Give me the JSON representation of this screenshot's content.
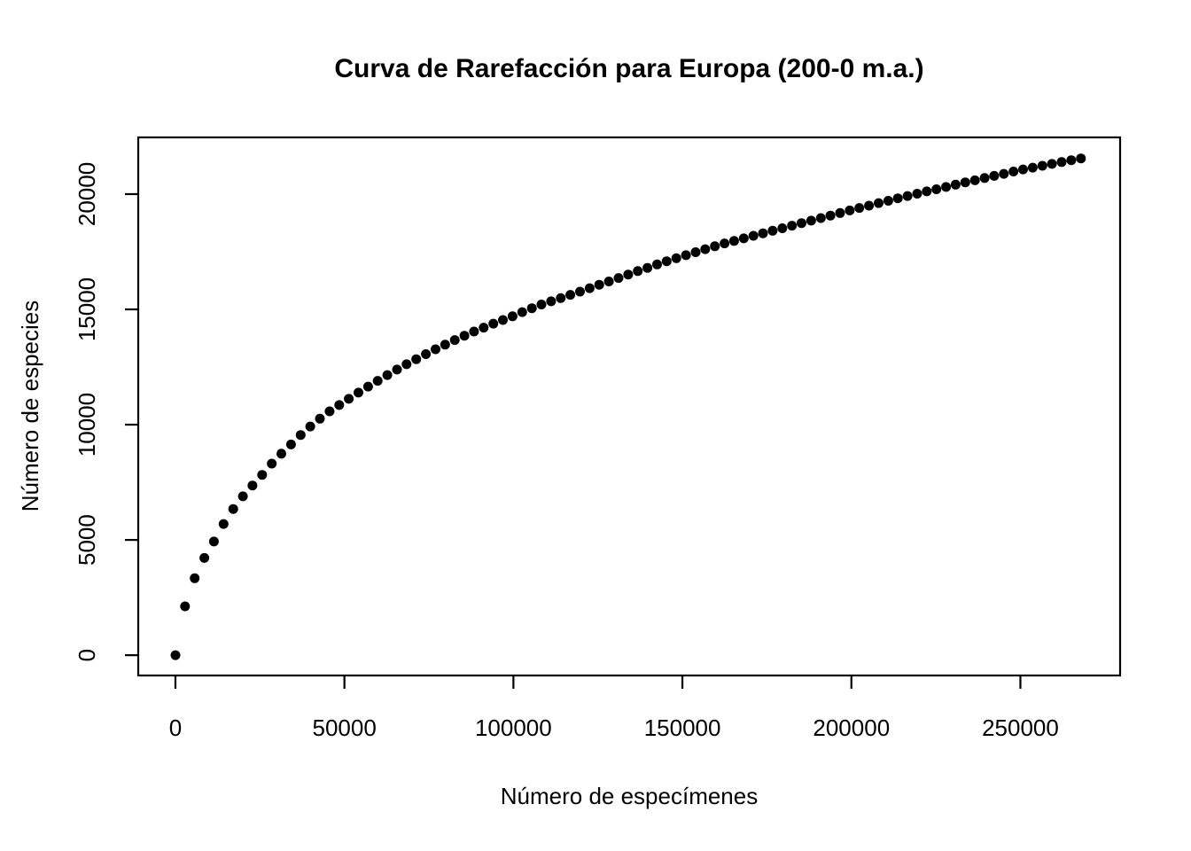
{
  "chart_data": {
    "type": "scatter",
    "title": "Curva de Rarefacción para Europa (200-0 m.a.)",
    "xlabel": "Número de especímenes",
    "ylabel": "Número de especies",
    "point_shape": "filled-circle",
    "point_color": "#000000",
    "background": "#ffffff",
    "grid": false,
    "legend_position": "none",
    "xlim": [
      -11000,
      279500
    ],
    "ylim": [
      -880,
      22460
    ],
    "x_ticks": [
      0,
      50000,
      100000,
      150000,
      200000,
      250000
    ],
    "x_tick_labels": [
      "0",
      "50000",
      "100000",
      "150000",
      "200000",
      "250000"
    ],
    "y_ticks": [
      0,
      5000,
      10000,
      15000,
      20000
    ],
    "y_tick_labels": [
      "0",
      "5000",
      "10000",
      "15000",
      "20000"
    ],
    "x": [
      1,
      2851,
      5701,
      8551,
      11401,
      14251,
      17101,
      19951,
      22801,
      25651,
      28501,
      31351,
      34201,
      37051,
      39901,
      42751,
      45601,
      48451,
      51301,
      54151,
      57001,
      59851,
      62701,
      65551,
      68401,
      71251,
      74101,
      76951,
      79801,
      82651,
      85501,
      88351,
      91201,
      94051,
      96901,
      99751,
      102601,
      105451,
      108301,
      111151,
      114001,
      116851,
      119701,
      122551,
      125401,
      128251,
      131101,
      133951,
      136801,
      139651,
      142501,
      145351,
      148201,
      151051,
      153901,
      156751,
      159601,
      162451,
      165301,
      168151,
      171001,
      173851,
      176701,
      179551,
      182401,
      185251,
      188101,
      190951,
      193801,
      196651,
      199501,
      202351,
      205201,
      208051,
      210901,
      213751,
      216601,
      219451,
      222301,
      225151,
      228001,
      230851,
      233701,
      236551,
      239401,
      242251,
      245101,
      247951,
      250801,
      253651,
      256501,
      259351,
      262201,
      265051,
      267901
    ],
    "y": [
      1,
      2120,
      3340,
      4220,
      4930,
      5690,
      6340,
      6890,
      7360,
      7820,
      8310,
      8740,
      9140,
      9550,
      9920,
      10260,
      10580,
      10850,
      11120,
      11390,
      11650,
      11900,
      12150,
      12390,
      12620,
      12840,
      13060,
      13270,
      13470,
      13670,
      13860,
      14040,
      14210,
      14380,
      14540,
      14700,
      14880,
      15050,
      15210,
      15350,
      15490,
      15630,
      15770,
      15920,
      16070,
      16210,
      16360,
      16510,
      16660,
      16800,
      16950,
      17090,
      17220,
      17350,
      17480,
      17610,
      17740,
      17860,
      17970,
      18080,
      18190,
      18300,
      18410,
      18520,
      18630,
      18740,
      18850,
      18960,
      19070,
      19180,
      19290,
      19400,
      19500,
      19610,
      19710,
      19820,
      19920,
      20020,
      20120,
      20210,
      20310,
      20410,
      20510,
      20600,
      20700,
      20790,
      20880,
      20980,
      21070,
      21150,
      21230,
      21310,
      21390,
      21470,
      21550
    ]
  }
}
